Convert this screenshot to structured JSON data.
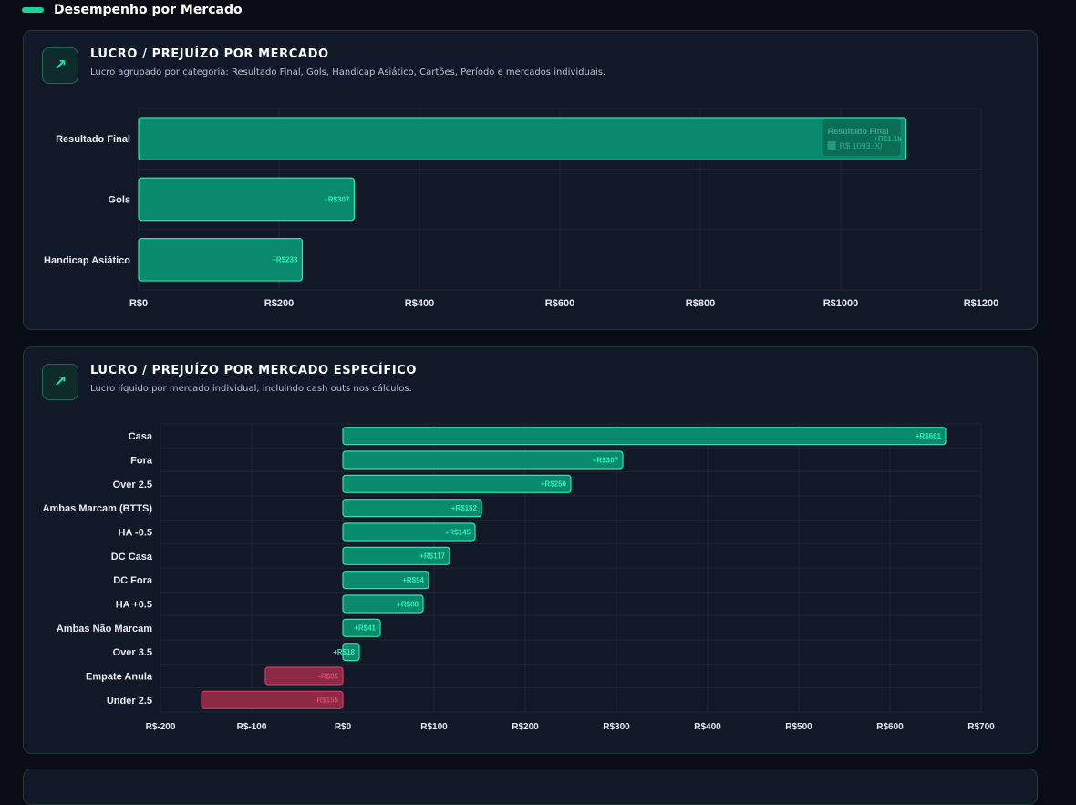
{
  "section": {
    "title": "Desempenho por Mercado"
  },
  "cards": [
    {
      "title": "LUCRO / PREJUÍZO POR MERCADO",
      "subtitle": "Lucro agrupado por categoria: Resultado Final, Gols, Handicap Asiático, Cartões, Período e mercados individuais.",
      "icon": "trend-up-icon"
    },
    {
      "title": "LUCRO / PREJUÍZO POR MERCADO ESPECÍFICO",
      "subtitle": "Lucro líquido por mercado individual, incluindo cash outs nos cálculos.",
      "icon": "trend-up-icon"
    }
  ],
  "colors": {
    "positive_fill": "#098a6c",
    "positive_stroke": "#2ae6b0",
    "positive_label": "#2ef0b5",
    "negative_fill": "#8c2a45",
    "negative_stroke": "#c93d61",
    "negative_label": "#e04a70",
    "grid": "#1e2636",
    "axis_text": "#e8ebf2"
  },
  "chart_data": [
    {
      "type": "bar",
      "orientation": "horizontal",
      "categories": [
        "Resultado Final",
        "Gols",
        "Handicap Asiático"
      ],
      "values": [
        1093,
        307,
        233
      ],
      "data_labels": [
        "+R$1.1k",
        "+R$307",
        "+R$233"
      ],
      "xlim": [
        0,
        1200
      ],
      "xticks": [
        0,
        200,
        400,
        600,
        800,
        1000,
        1200
      ],
      "xtick_labels": [
        "R$0",
        "R$200",
        "R$400",
        "R$600",
        "R$800",
        "R$1000",
        "R$1200"
      ],
      "grid": true,
      "tooltip": {
        "title": "Resultado Final",
        "value": "R$ 1093.00"
      }
    },
    {
      "type": "bar",
      "orientation": "horizontal",
      "categories": [
        "Casa",
        "Fora",
        "Over 2.5",
        "Ambas Marcam (BTTS)",
        "HA -0.5",
        "DC Casa",
        "DC Fora",
        "HA +0.5",
        "Ambas Não Marcam",
        "Over 3.5",
        "Empate Anula",
        "Under 2.5"
      ],
      "values": [
        661,
        307,
        250,
        152,
        145,
        117,
        94,
        88,
        41,
        18,
        -85,
        -155
      ],
      "data_labels": [
        "+R$661",
        "+R$307",
        "+R$250",
        "+R$152",
        "+R$145",
        "+R$117",
        "+R$94",
        "+R$88",
        "+R$41",
        "+R$18",
        "-R$85",
        "-R$155"
      ],
      "xlim": [
        -200,
        700
      ],
      "xticks": [
        -200,
        -100,
        0,
        100,
        200,
        300,
        400,
        500,
        600,
        700
      ],
      "xtick_labels": [
        "R$-200",
        "R$-100",
        "R$0",
        "R$100",
        "R$200",
        "R$300",
        "R$400",
        "R$500",
        "R$600",
        "R$700"
      ],
      "grid": true
    }
  ]
}
